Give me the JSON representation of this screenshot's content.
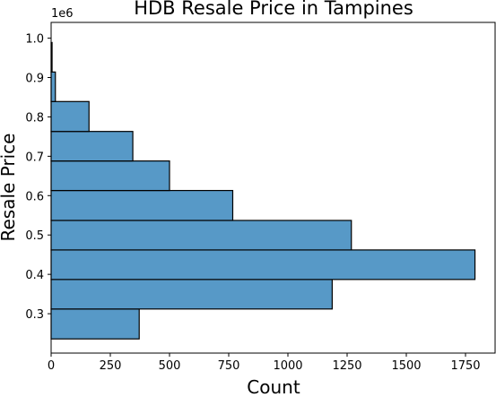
{
  "chart_data": {
    "type": "bar",
    "orientation": "horizontal",
    "title": "HDB Resale Price in Tampines",
    "xlabel": "Count",
    "ylabel": "Resale Price",
    "y_offset_label": "1e6",
    "bar_color": "#5799c7",
    "xlim": [
      0,
      1875
    ],
    "ylim": [
      0.2,
      1.04
    ],
    "xticks": [
      0,
      250,
      500,
      750,
      1000,
      1250,
      1500,
      1750
    ],
    "yticks": [
      0.3,
      0.4,
      0.5,
      0.6,
      0.7,
      0.8,
      0.9,
      1.0
    ],
    "ytick_labels": [
      "0.3",
      "0.4",
      "0.5",
      "0.6",
      "0.7",
      "0.8",
      "0.9",
      "1.0"
    ],
    "bins": [
      {
        "low": 0.236,
        "high": 0.312,
        "count": 372
      },
      {
        "low": 0.312,
        "high": 0.387,
        "count": 1187
      },
      {
        "low": 0.387,
        "high": 0.462,
        "count": 1790
      },
      {
        "low": 0.462,
        "high": 0.537,
        "count": 1268
      },
      {
        "low": 0.537,
        "high": 0.613,
        "count": 767
      },
      {
        "low": 0.613,
        "high": 0.688,
        "count": 500
      },
      {
        "low": 0.688,
        "high": 0.763,
        "count": 345
      },
      {
        "low": 0.763,
        "high": 0.839,
        "count": 160
      },
      {
        "low": 0.839,
        "high": 0.914,
        "count": 18
      },
      {
        "low": 0.914,
        "high": 0.989,
        "count": 4
      }
    ],
    "grid": false,
    "legend": "none"
  }
}
